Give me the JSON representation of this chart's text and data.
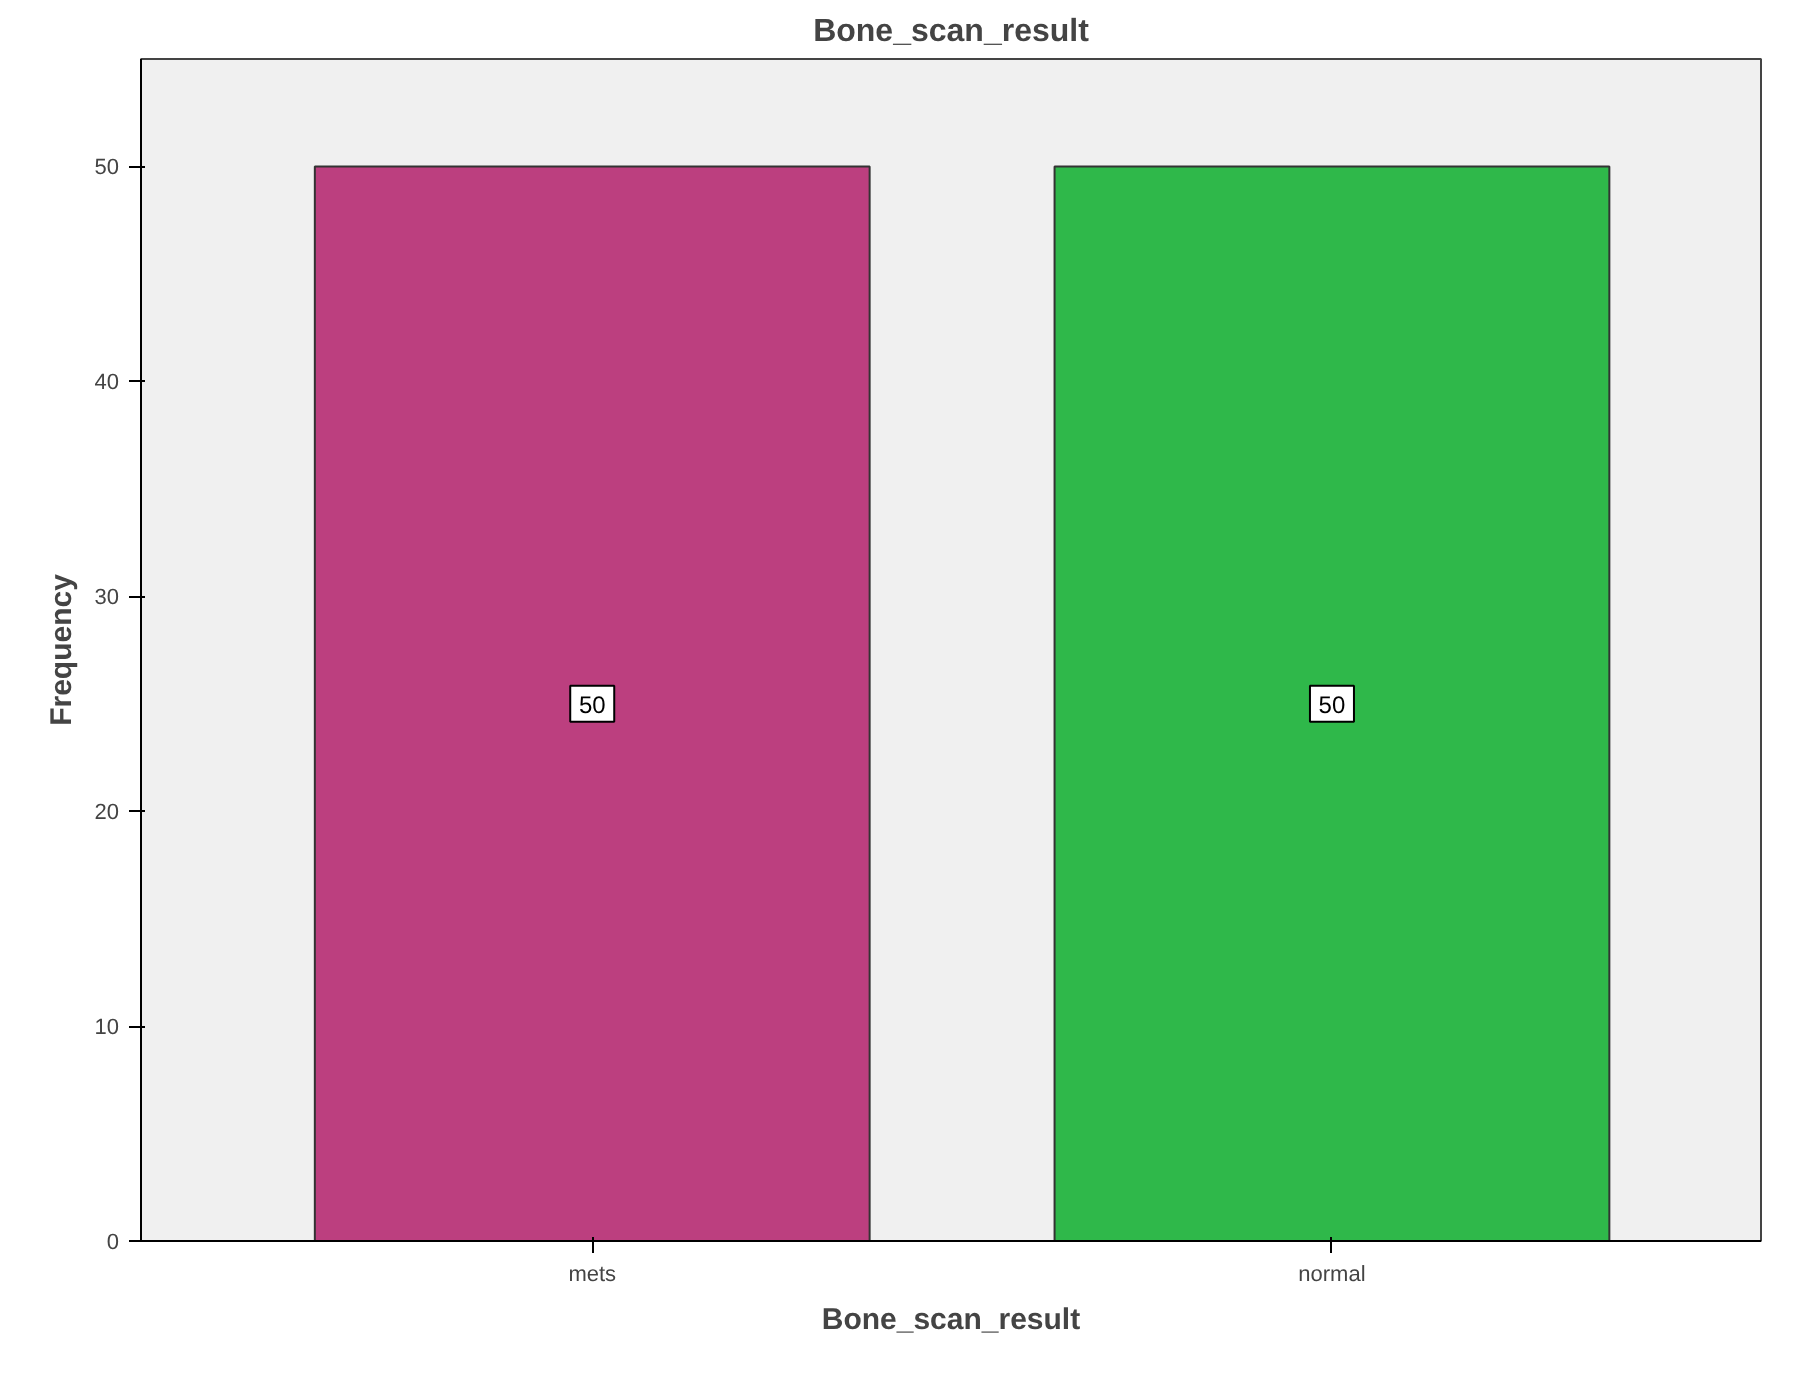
{
  "chart_data": {
    "type": "bar",
    "title": "Bone_scan_result",
    "xlabel": "Bone_scan_result",
    "ylabel": "Frequency",
    "categories": [
      "mets",
      "normal"
    ],
    "values": [
      50,
      50
    ],
    "colors": [
      "#bc3f7f",
      "#2fb84a"
    ],
    "ylim": [
      0,
      55
    ],
    "yticks": [
      0,
      10,
      20,
      30,
      40,
      50
    ],
    "grid": false,
    "data_labels": true
  }
}
